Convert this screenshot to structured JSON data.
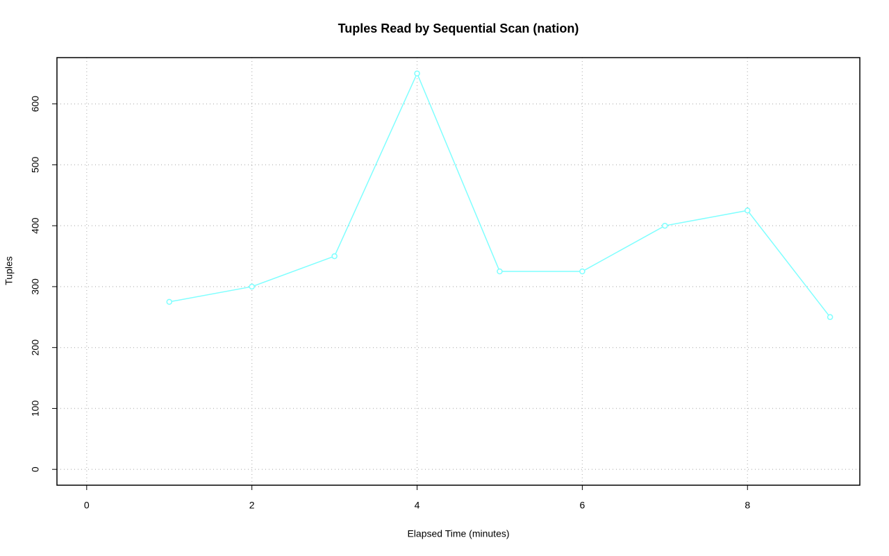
{
  "chart_data": {
    "type": "line",
    "title": "Tuples Read by Sequential Scan (nation)",
    "x_label": "Elapsed Time (minutes)",
    "y_label": "Tuples",
    "x": [
      1,
      2,
      3,
      4,
      5,
      6,
      7,
      8,
      9
    ],
    "series": [
      {
        "name": "nation",
        "color": "#7fffff",
        "values": [
          275,
          300,
          350,
          650,
          325,
          325,
          400,
          425,
          250
        ]
      }
    ],
    "xlim": [
      -0.36,
      9.36
    ],
    "xticks": [
      0,
      2,
      4,
      6,
      8
    ],
    "ylim": [
      -26,
      676
    ],
    "yticks": [
      0,
      100,
      200,
      300,
      400,
      500,
      600
    ],
    "grid": true
  }
}
